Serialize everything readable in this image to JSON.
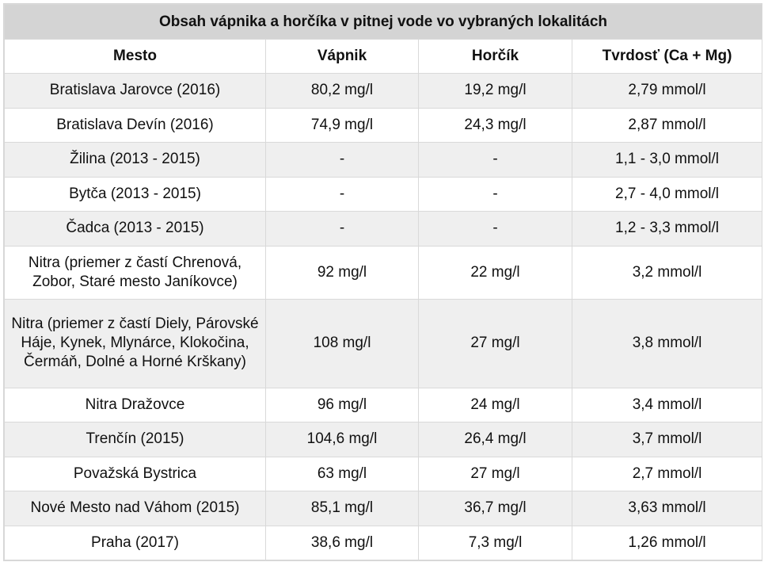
{
  "title": "Obsah vápnika a horčíka v pitnej vode vo vybraných lokalitách",
  "columns": [
    "Mesto",
    "Vápnik",
    "Horčík",
    "Tvrdosť (Ca + Mg)"
  ],
  "rows": [
    [
      "Bratislava Jarovce (2016)",
      "80,2 mg/l",
      "19,2 mg/l",
      "2,79 mmol/l"
    ],
    [
      "Bratislava Devín (2016)",
      "74,9 mg/l",
      "24,3 mg/l",
      "2,87 mmol/l"
    ],
    [
      "Žilina (2013 - 2015)",
      "-",
      "-",
      "1,1 - 3,0 mmol/l"
    ],
    [
      "Bytča (2013 - 2015)",
      "-",
      "-",
      "2,7 - 4,0 mmol/l"
    ],
    [
      "Čadca (2013 - 2015)",
      "-",
      "-",
      "1,2 - 3,3 mmol/l"
    ],
    [
      "Nitra (priemer z častí Chrenová, Zobor, Staré mesto Janíkovce)",
      "92 mg/l",
      "22 mg/l",
      "3,2 mmol/l"
    ],
    [
      "Nitra (priemer z častí Diely, Párovské Háje, Kynek, Mlynárce, Klokočina, Čermáň, Dolné a Horné Krškany)",
      "108 mg/l",
      "27 mg/l",
      "3,8 mmol/l"
    ],
    [
      "Nitra Dražovce",
      "96 mg/l",
      "24 mg/l",
      "3,4 mmol/l"
    ],
    [
      "Trenčín (2015)",
      "104,6 mg/l",
      "26,4 mg/l",
      "3,7 mmol/l"
    ],
    [
      "Považská Bystrica",
      "63 mg/l",
      "27 mg/l",
      "2,7 mmol/l"
    ],
    [
      "Nové Mesto nad Váhom (2015)",
      "85,1 mg/l",
      "36,7 mg/l",
      "3,63 mmol/l"
    ],
    [
      "Praha (2017)",
      "38,6 mg/l",
      "7,3 mg/l",
      "1,26 mmol/l"
    ]
  ]
}
